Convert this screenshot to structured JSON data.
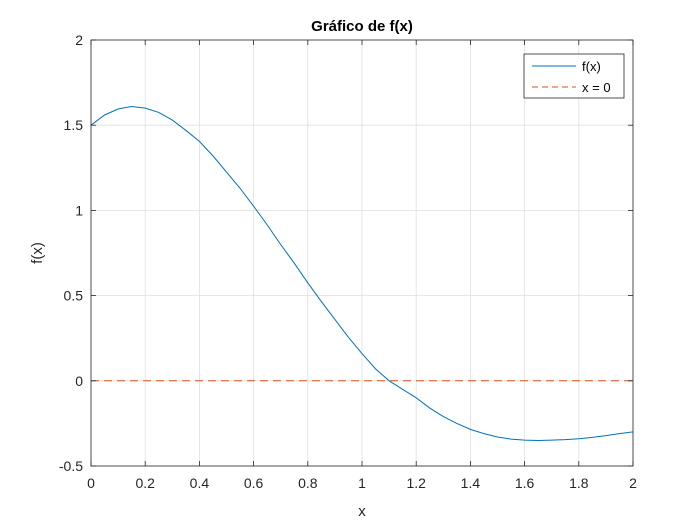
{
  "chart_data": {
    "type": "line",
    "title": "Gráfico de f(x)",
    "xlabel": "x",
    "ylabel": "f(x)",
    "xlim": [
      0,
      2
    ],
    "ylim": [
      -0.5,
      2
    ],
    "xticks": [
      0,
      0.2,
      0.4,
      0.6,
      0.8,
      1,
      1.2,
      1.4,
      1.6,
      1.8,
      2
    ],
    "xtick_labels": [
      "0",
      "0.2",
      "0.4",
      "0.6",
      "0.8",
      "1",
      "1.2",
      "1.4",
      "1.6",
      "1.8",
      "2"
    ],
    "yticks": [
      -0.5,
      0,
      0.5,
      1,
      1.5,
      2
    ],
    "ytick_labels": [
      "-0.5",
      "0",
      "0.5",
      "1",
      "1.5",
      "2"
    ],
    "grid": true,
    "legend_position": "top-right",
    "series": [
      {
        "name": "f(x)",
        "color": "#0072BD",
        "style": "solid",
        "x": [
          0,
          0.05,
          0.1,
          0.15,
          0.2,
          0.25,
          0.3,
          0.35,
          0.4,
          0.45,
          0.5,
          0.55,
          0.6,
          0.65,
          0.7,
          0.75,
          0.8,
          0.85,
          0.9,
          0.95,
          1.0,
          1.05,
          1.1,
          1.15,
          1.2,
          1.25,
          1.3,
          1.35,
          1.4,
          1.45,
          1.5,
          1.55,
          1.6,
          1.65,
          1.7,
          1.75,
          1.8,
          1.85,
          1.9,
          1.95,
          2.0
        ],
        "y": [
          1.5,
          1.56,
          1.595,
          1.61,
          1.6,
          1.575,
          1.53,
          1.47,
          1.405,
          1.32,
          1.225,
          1.13,
          1.025,
          0.915,
          0.8,
          0.69,
          0.575,
          0.465,
          0.36,
          0.255,
          0.16,
          0.07,
          0.0,
          -0.05,
          -0.1,
          -0.16,
          -0.21,
          -0.25,
          -0.285,
          -0.31,
          -0.33,
          -0.342,
          -0.348,
          -0.35,
          -0.348,
          -0.345,
          -0.34,
          -0.332,
          -0.322,
          -0.31,
          -0.3
        ]
      },
      {
        "name": "x = 0",
        "color": "#D95319",
        "style": "dashed",
        "x": [
          0,
          2
        ],
        "y": [
          0,
          0
        ]
      }
    ]
  }
}
